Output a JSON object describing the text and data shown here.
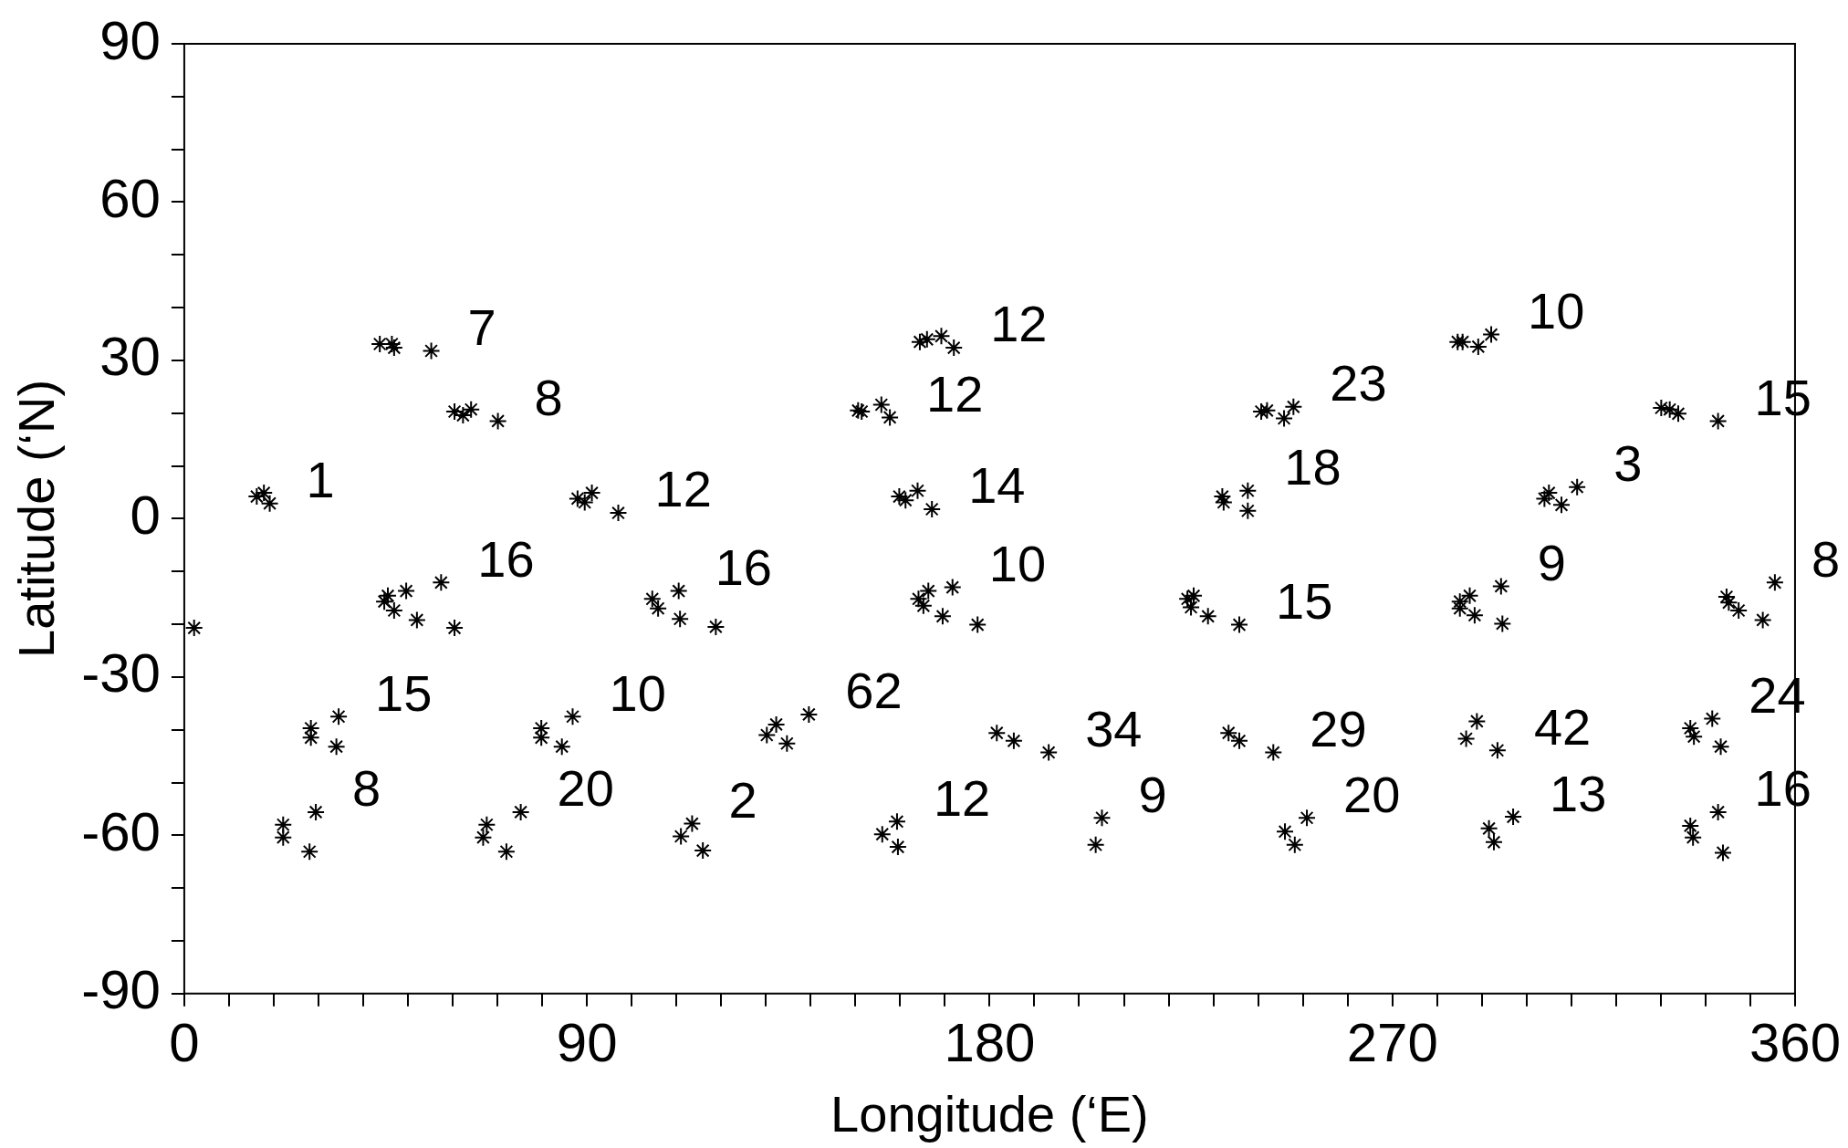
{
  "chart_data": {
    "type": "scatter",
    "xlabel": "Longitude (‘E)",
    "ylabel": "Latitude (‘N)",
    "marker": "cross",
    "legend": false,
    "grid": false,
    "xlim": [
      0,
      360
    ],
    "ylim": [
      -90,
      90
    ],
    "xticks": [
      0,
      {
        "value": 10,
        "label": null
      },
      {
        "value": 20,
        "label": null
      },
      {
        "value": 30,
        "label": null
      },
      {
        "value": 40,
        "label": null
      },
      {
        "value": 50,
        "label": null
      },
      {
        "value": 60,
        "label": null
      },
      {
        "value": 70,
        "label": null
      },
      {
        "value": 80,
        "label": null
      },
      90,
      {
        "value": 100,
        "label": null
      },
      {
        "value": 110,
        "label": null
      },
      {
        "value": 120,
        "label": null
      },
      {
        "value": 130,
        "label": null
      },
      {
        "value": 140,
        "label": null
      },
      {
        "value": 150,
        "label": null
      },
      {
        "value": 160,
        "label": null
      },
      {
        "value": 170,
        "label": null
      },
      180,
      {
        "value": 190,
        "label": null
      },
      {
        "value": 200,
        "label": null
      },
      {
        "value": 210,
        "label": null
      },
      {
        "value": 220,
        "label": null
      },
      {
        "value": 230,
        "label": null
      },
      {
        "value": 240,
        "label": null
      },
      {
        "value": 250,
        "label": null
      },
      {
        "value": 260,
        "label": null
      },
      270,
      {
        "value": 280,
        "label": null
      },
      {
        "value": 290,
        "label": null
      },
      {
        "value": 300,
        "label": null
      },
      {
        "value": 310,
        "label": null
      },
      {
        "value": 320,
        "label": null
      },
      {
        "value": 330,
        "label": null
      },
      {
        "value": 340,
        "label": null
      },
      {
        "value": 350,
        "label": null
      },
      360
    ],
    "yticks": [
      -90,
      {
        "value": -80,
        "label": null
      },
      {
        "value": -70,
        "label": null
      },
      -60,
      {
        "value": -50,
        "label": null
      },
      {
        "value": -40,
        "label": null
      },
      -30,
      {
        "value": -20,
        "label": null
      },
      {
        "value": -10,
        "label": null
      },
      0,
      {
        "value": 10,
        "label": null
      },
      {
        "value": 20,
        "label": null
      },
      30,
      {
        "value": 40,
        "label": null
      },
      {
        "value": 50,
        "label": null
      },
      60,
      {
        "value": 70,
        "label": null
      },
      {
        "value": 80,
        "label": null
      },
      90
    ],
    "series": [
      {
        "color": "#000000",
        "x": [
          16.2,
          17.8,
          19.1,
          2.2,
          43.7,
          46.4,
          46.9,
          55.2,
          60.4,
          62.3,
          64.1,
          70.1,
          44.7,
          45.5,
          46.9,
          49.6,
          52,
          57.4,
          60.4,
          28.3,
          28.3,
          34.5,
          34,
          22.1,
          22.1,
          29.4,
          28,
          87.9,
          89.5,
          91.1,
          97,
          104.6,
          105.9,
          110.5,
          110.8,
          118.8,
          79.8,
          79.8,
          86.8,
          84.4,
          67.6,
          66.8,
          75.2,
          72,
          113.5,
          111,
          115.9,
          132.3,
          130.2,
          134.7,
          139.6,
          164.4,
          166,
          169.2,
          172,
          150.6,
          151.4,
          155.8,
          157.7,
          159.8,
          161.2,
          163.9,
          167.1,
          164.1,
          165.2,
          166.3,
          169.5,
          171.7,
          177.3,
          156,
          159.3,
          159.5,
          181.6,
          185.4,
          193.2,
          205.1,
          203.7,
          224.2,
          225.6,
          225,
          228.8,
          235.8,
          232,
          232.3,
          237.7,
          237.7,
          240.7,
          242,
          245.8,
          247.9,
          233.4,
          235.8,
          243.4,
          246,
          248.2,
          250.9,
          284.6,
          285.7,
          289.2,
          292.1,
          304,
          305,
          307.8,
          311.3,
          285.1,
          285.1,
          287.3,
          288.4,
          294.3,
          294.6,
          286.5,
          288.9,
          293.5,
          291.6,
          292.7,
          297,
          330.1,
          332,
          333.9,
          342.8,
          344.7,
          345.2,
          347.4,
          352.8,
          355.5,
          336.6,
          337.4,
          341.5,
          343.4,
          336.6,
          337.2,
          342.8,
          343.9
        ],
        "values": [
          4.2,
          4.9,
          2.9,
          -20.7,
          33.1,
          33.1,
          32.4,
          31.8,
          20.3,
          19.6,
          20.7,
          18.5,
          -15.7,
          -14.6,
          -17.4,
          -13.7,
          -19.2,
          -12.1,
          -20.7,
          -39.7,
          -41.5,
          -37.5,
          -43.2,
          -58,
          -60.4,
          -55.6,
          -63.1,
          3.8,
          3.1,
          4.9,
          1.1,
          -15.2,
          -17,
          -13.7,
          -19,
          -20.5,
          -39.7,
          -41.5,
          -37.5,
          -43.2,
          -58,
          -60.4,
          -55.6,
          -63.1,
          -57.8,
          -60.2,
          -62.9,
          -39,
          -41,
          -42.6,
          -37.1,
          33.5,
          34,
          34.6,
          32.4,
          20.5,
          20.3,
          21.6,
          19.2,
          4.2,
          3.5,
          5.3,
          1.8,
          -15.2,
          -16.5,
          -13.7,
          -18.5,
          -13,
          -20.1,
          -59.8,
          -57.4,
          -62.2,
          -40.6,
          -42.1,
          -44.3,
          -56.7,
          -61.8,
          -15.2,
          -14.6,
          -16.8,
          -18.5,
          -20.1,
          4.2,
          3.1,
          5.3,
          1.5,
          20.3,
          20.5,
          19,
          21.2,
          -40.6,
          -42.1,
          -44.3,
          -59.3,
          -61.8,
          -56.7,
          33.5,
          33.5,
          32.6,
          34.9,
          3.8,
          4.9,
          2.6,
          6,
          -15.7,
          -17,
          -14.6,
          -18.3,
          -12.8,
          -19.9,
          -41.7,
          -38.4,
          -43.9,
          -58.7,
          -61.3,
          -56.5,
          21,
          20.7,
          19.9,
          18.5,
          -14.8,
          -15.9,
          -17.4,
          -19.2,
          -12.1,
          -39.7,
          -41.3,
          -37.9,
          -43.2,
          -58.2,
          -60.4,
          -55.6,
          -63.3
        ]
      }
    ],
    "annotations": [
      {
        "text": "1",
        "x": 19.1,
        "y": 2.9
      },
      {
        "text": "7",
        "x": 55.2,
        "y": 31.8
      },
      {
        "text": "8",
        "x": 70.1,
        "y": 18.5
      },
      {
        "text": "16",
        "x": 57.4,
        "y": -12.1
      },
      {
        "text": "15",
        "x": 34.5,
        "y": -37.5
      },
      {
        "text": "8",
        "x": 29.4,
        "y": -55.6
      },
      {
        "text": "12",
        "x": 97,
        "y": 1.1
      },
      {
        "text": "16",
        "x": 110.5,
        "y": -13.7
      },
      {
        "text": "10",
        "x": 86.8,
        "y": -37.5
      },
      {
        "text": "20",
        "x": 75.2,
        "y": -55.6
      },
      {
        "text": "2",
        "x": 113.5,
        "y": -57.8
      },
      {
        "text": "62",
        "x": 139.6,
        "y": -37.1
      },
      {
        "text": "12",
        "x": 172,
        "y": 32.4
      },
      {
        "text": "12",
        "x": 157.7,
        "y": 19.2
      },
      {
        "text": "14",
        "x": 167.1,
        "y": 1.8
      },
      {
        "text": "10",
        "x": 171.7,
        "y": -13
      },
      {
        "text": "12",
        "x": 159.3,
        "y": -57.4
      },
      {
        "text": "34",
        "x": 193.2,
        "y": -44.3
      },
      {
        "text": "9",
        "x": 205.1,
        "y": -56.7
      },
      {
        "text": "15",
        "x": 235.8,
        "y": -20.1
      },
      {
        "text": "18",
        "x": 237.7,
        "y": 5.3
      },
      {
        "text": "23",
        "x": 247.9,
        "y": 21.2
      },
      {
        "text": "29",
        "x": 243.4,
        "y": -44.3
      },
      {
        "text": "20",
        "x": 250.9,
        "y": -56.7
      },
      {
        "text": "10",
        "x": 292.1,
        "y": 34.9
      },
      {
        "text": "3",
        "x": 311.3,
        "y": 6
      },
      {
        "text": "9",
        "x": 294.3,
        "y": -12.8
      },
      {
        "text": "42",
        "x": 293.5,
        "y": -43.9
      },
      {
        "text": "13",
        "x": 297,
        "y": -56.5
      },
      {
        "text": "15",
        "x": 342.8,
        "y": 18.5
      },
      {
        "text": "8",
        "x": 355.5,
        "y": -12.1
      },
      {
        "text": "24",
        "x": 341.5,
        "y": -37.9
      },
      {
        "text": "16",
        "x": 342.8,
        "y": -55.6
      }
    ]
  }
}
